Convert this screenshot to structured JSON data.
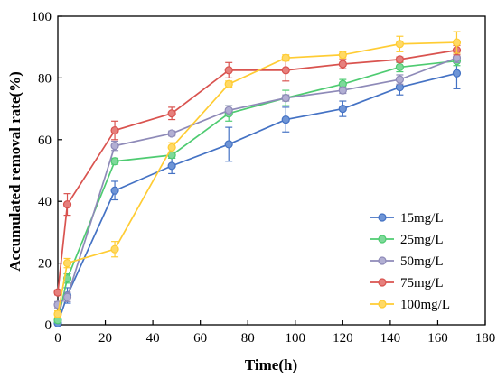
{
  "chart_data": {
    "type": "line",
    "xlabel": "Time(h)",
    "ylabel": "Accumulated removal rate(%)",
    "xlim": [
      0,
      180
    ],
    "ylim": [
      0,
      100
    ],
    "xticks": [
      0,
      20,
      40,
      60,
      80,
      100,
      120,
      140,
      160,
      180
    ],
    "yticks": [
      0,
      20,
      40,
      60,
      80,
      100
    ],
    "grid": false,
    "legend_position": "bottom-right",
    "x": [
      0,
      4,
      24,
      48,
      72,
      96,
      120,
      144,
      168
    ],
    "series": [
      {
        "name": "15mg/L",
        "color": "#4472C4",
        "marker_fill": "#6F95D6",
        "values": [
          0.5,
          9.5,
          43.5,
          51.5,
          58.5,
          66.5,
          70,
          77,
          81.5
        ],
        "errors": [
          0.5,
          2.5,
          3,
          2.5,
          5.5,
          4,
          2.5,
          2.5,
          5
        ]
      },
      {
        "name": "25mg/L",
        "color": "#4ECB71",
        "marker_fill": "#7ED99A",
        "values": [
          1.5,
          15,
          53,
          55,
          68.5,
          73.5,
          78,
          83.5,
          85.5
        ],
        "errors": [
          0.8,
          1.5,
          1,
          1,
          2.5,
          2.5,
          1.5,
          1.5,
          1.5
        ]
      },
      {
        "name": "50mg/L",
        "color": "#8E8AB8",
        "marker_fill": "#B2AFD3",
        "values": [
          6.5,
          9,
          58,
          62,
          69.5,
          73.5,
          76,
          79.5,
          86.5
        ],
        "errors": [
          1,
          1.5,
          1.5,
          0.8,
          1.5,
          1,
          1,
          1.5,
          1.5
        ]
      },
      {
        "name": "75mg/L",
        "color": "#D9534F",
        "marker_fill": "#E6807D",
        "values": [
          10.5,
          39,
          63,
          68.5,
          82.5,
          82.5,
          84.5,
          86,
          89
        ],
        "errors": [
          0.8,
          3.5,
          3,
          2,
          2.5,
          3.5,
          1.5,
          0.8,
          1.5
        ]
      },
      {
        "name": "100mg/L",
        "color": "#FFCC33",
        "marker_fill": "#FFD966",
        "values": [
          3.5,
          20,
          24.5,
          57.5,
          78,
          86.5,
          87.5,
          91,
          91.5
        ],
        "errors": [
          1,
          1.5,
          2.5,
          1.5,
          1,
          1,
          1,
          2.5,
          3.5
        ]
      }
    ]
  }
}
